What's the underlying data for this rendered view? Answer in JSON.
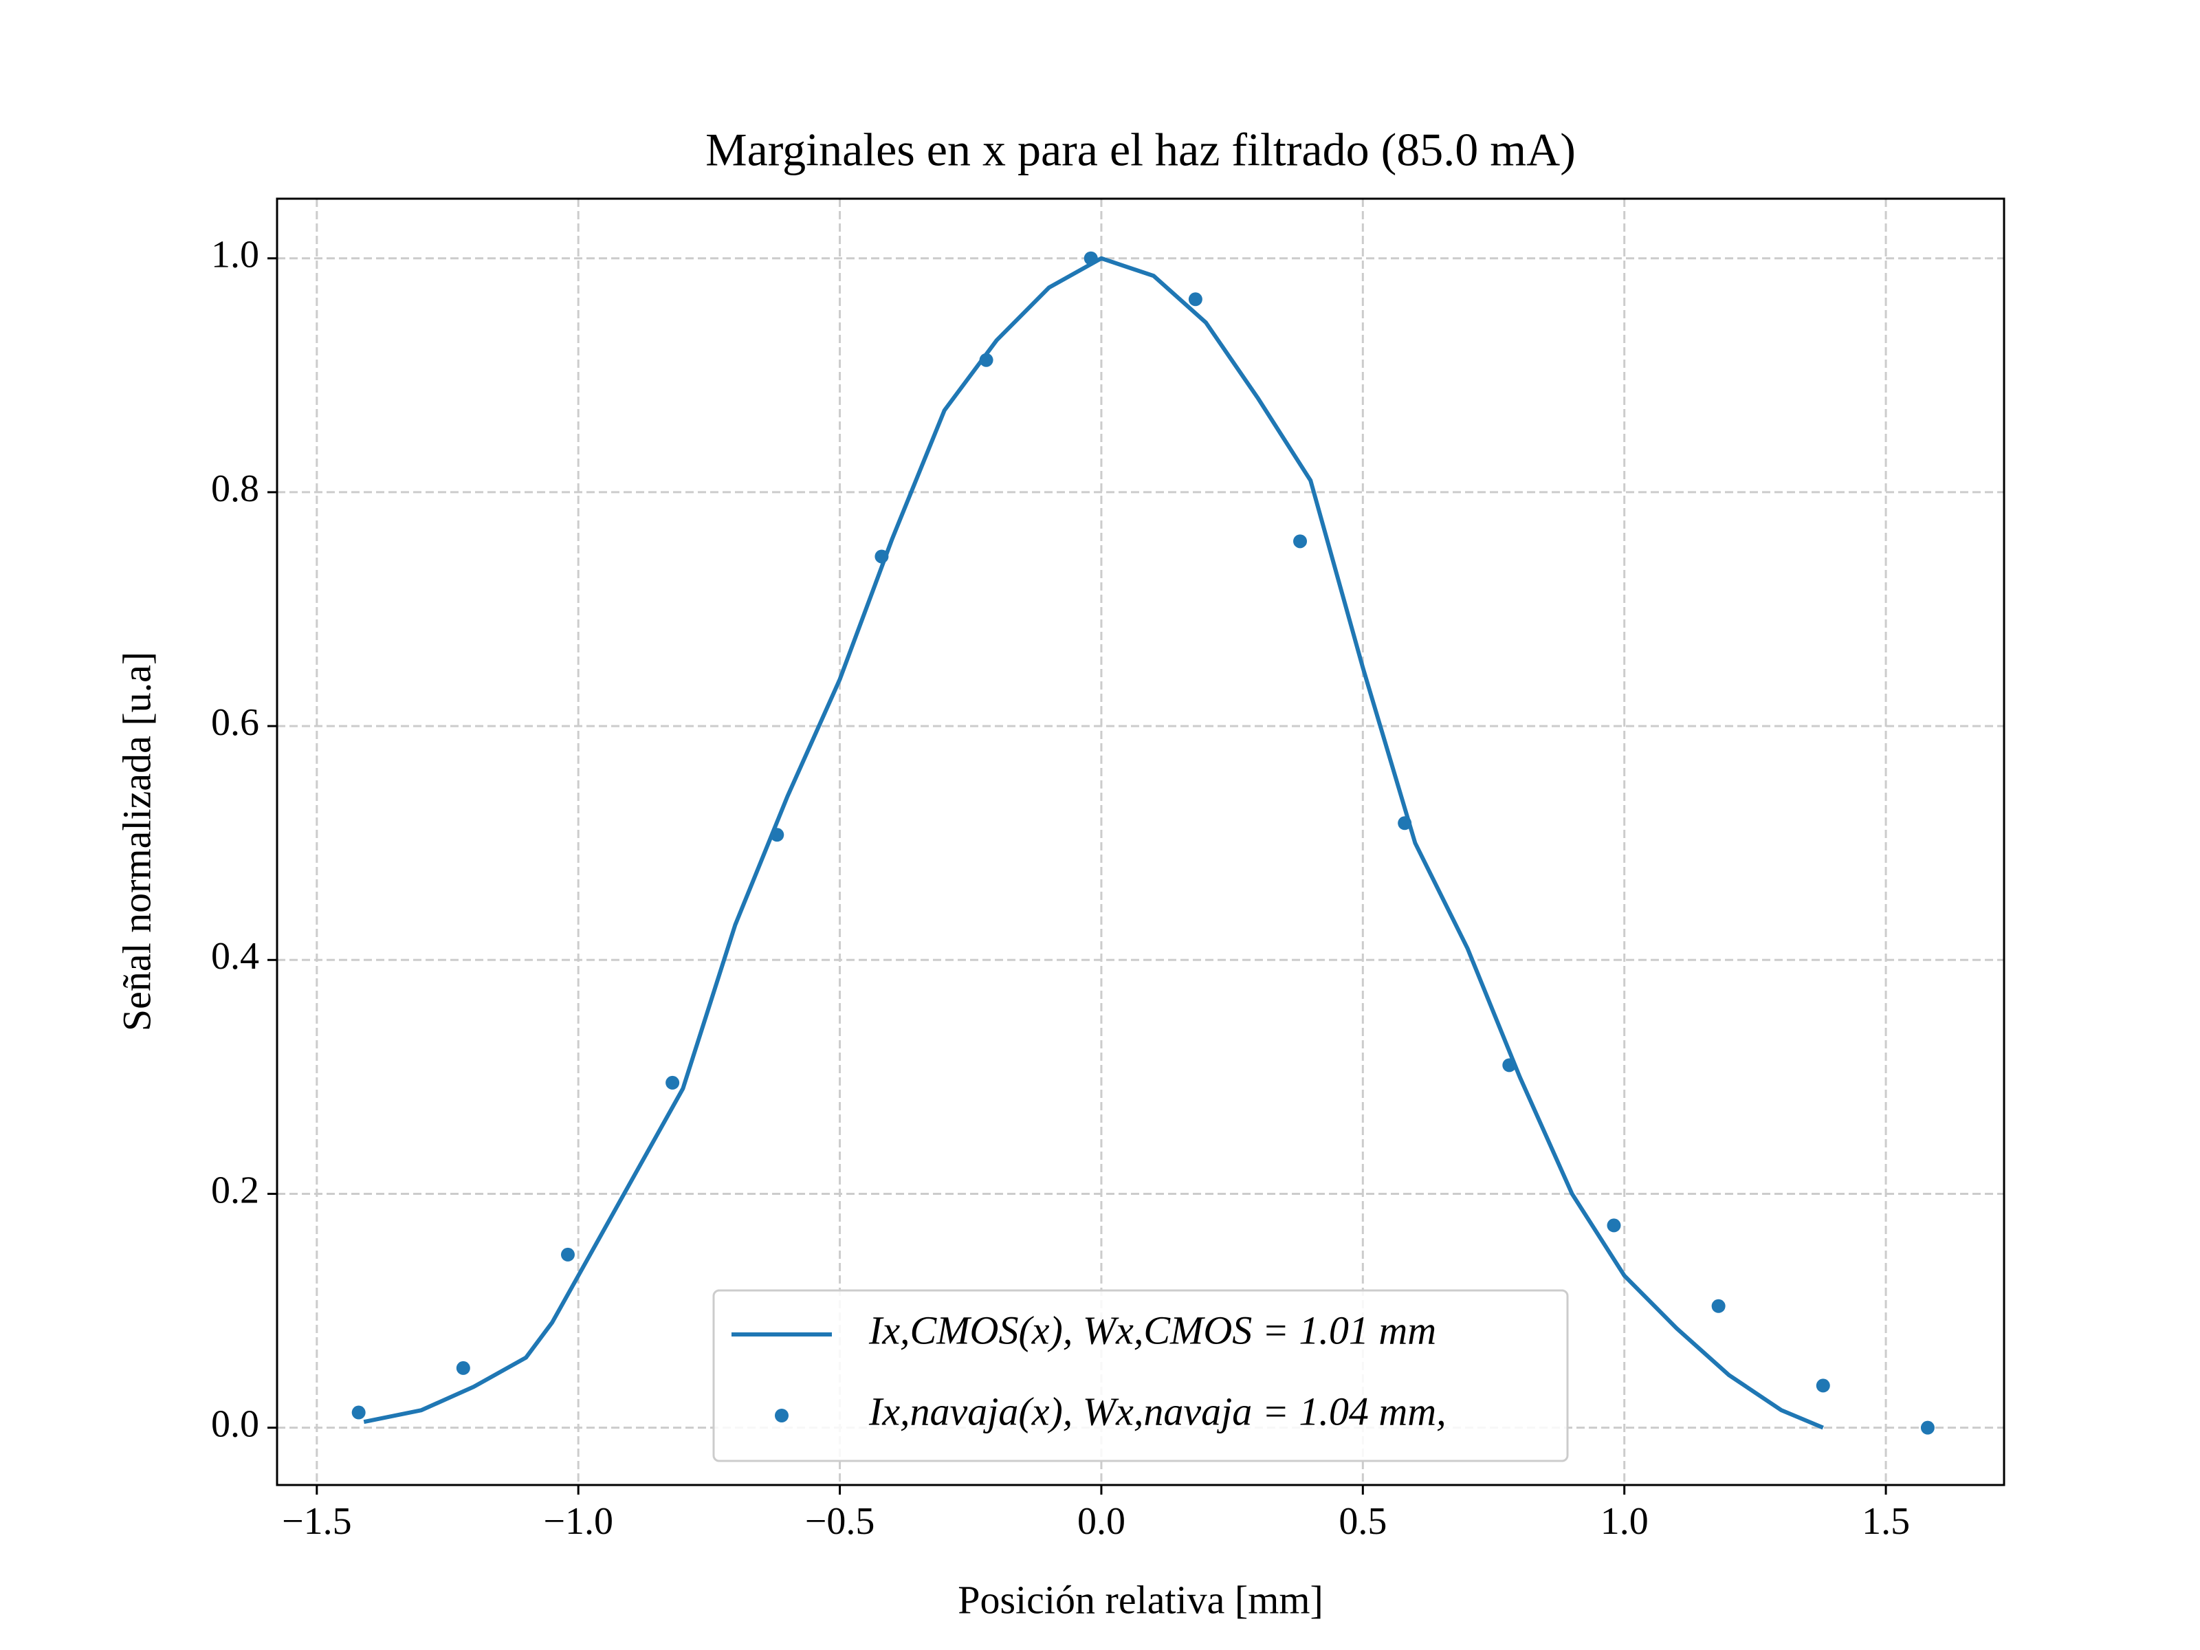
{
  "chart_data": {
    "type": "line_scatter",
    "title": "Marginales en x para el haz filtrado (85.0 mA)",
    "xlabel": "Posición relativa [mm]",
    "ylabel": "Señal normalizada [u.a]",
    "xlim": [
      -1.576,
      1.726
    ],
    "ylim": [
      -0.049,
      1.051
    ],
    "xticks": [
      {
        "value": -1.5,
        "label": "−1.5"
      },
      {
        "value": -1.0,
        "label": "−1.0"
      },
      {
        "value": -0.5,
        "label": "−0.5"
      },
      {
        "value": 0,
        "label": "0.0"
      },
      {
        "value": 0.5,
        "label": "0.5"
      },
      {
        "value": 1.0,
        "label": "1.0"
      },
      {
        "value": 1.5,
        "label": "1.5"
      }
    ],
    "yticks": [
      {
        "value": 0,
        "label": "0.0"
      },
      {
        "value": 0.2,
        "label": "0.2"
      },
      {
        "value": 0.4,
        "label": "0.4"
      },
      {
        "value": 0.6,
        "label": "0.6"
      },
      {
        "value": 0.8,
        "label": "0.8"
      },
      {
        "value": 1.0,
        "label": "1.0"
      }
    ],
    "grid": true,
    "legend": "lower center",
    "series": [
      {
        "name": "Ix,CMOS(x), Wx,CMOS = 1.01 mm",
        "kind": "line",
        "color": "#1f77b4",
        "x": [
          -1.41,
          -1.3,
          -1.2,
          -1.1,
          -1.05,
          -1.0,
          -0.9,
          -0.8,
          -0.7,
          -0.6,
          -0.5,
          -0.4,
          -0.3,
          -0.2,
          -0.1,
          0,
          0.1,
          0.2,
          0.3,
          0.4,
          0.5,
          0.6,
          0.7,
          0.8,
          0.9,
          1.0,
          1.1,
          1.2,
          1.3,
          1.38
        ],
        "values": [
          0.005,
          0.015,
          0.035,
          0.06,
          0.09,
          0.13,
          0.21,
          0.29,
          0.43,
          0.54,
          0.64,
          0.76,
          0.87,
          0.93,
          0.975,
          1.0,
          0.985,
          0.945,
          0.88,
          0.81,
          0.65,
          0.5,
          0.41,
          0.3,
          0.2,
          0.13,
          0.085,
          0.045,
          0.015,
          0.0
        ]
      },
      {
        "name": "Ix,navaja(x), Wx,navaja = 1.04 mm,",
        "kind": "scatter",
        "color": "#1f77b4",
        "x": [
          -1.42,
          -1.22,
          -1.02,
          -0.82,
          -0.62,
          -0.42,
          -0.22,
          -0.02,
          0.18,
          0.38,
          0.58,
          0.78,
          0.98,
          1.18,
          1.38,
          1.58
        ],
        "values": [
          0.013,
          0.051,
          0.148,
          0.295,
          0.507,
          0.745,
          0.913,
          1.0,
          0.965,
          0.758,
          0.517,
          0.31,
          0.173,
          0.104,
          0.036,
          0.0
        ]
      }
    ]
  }
}
